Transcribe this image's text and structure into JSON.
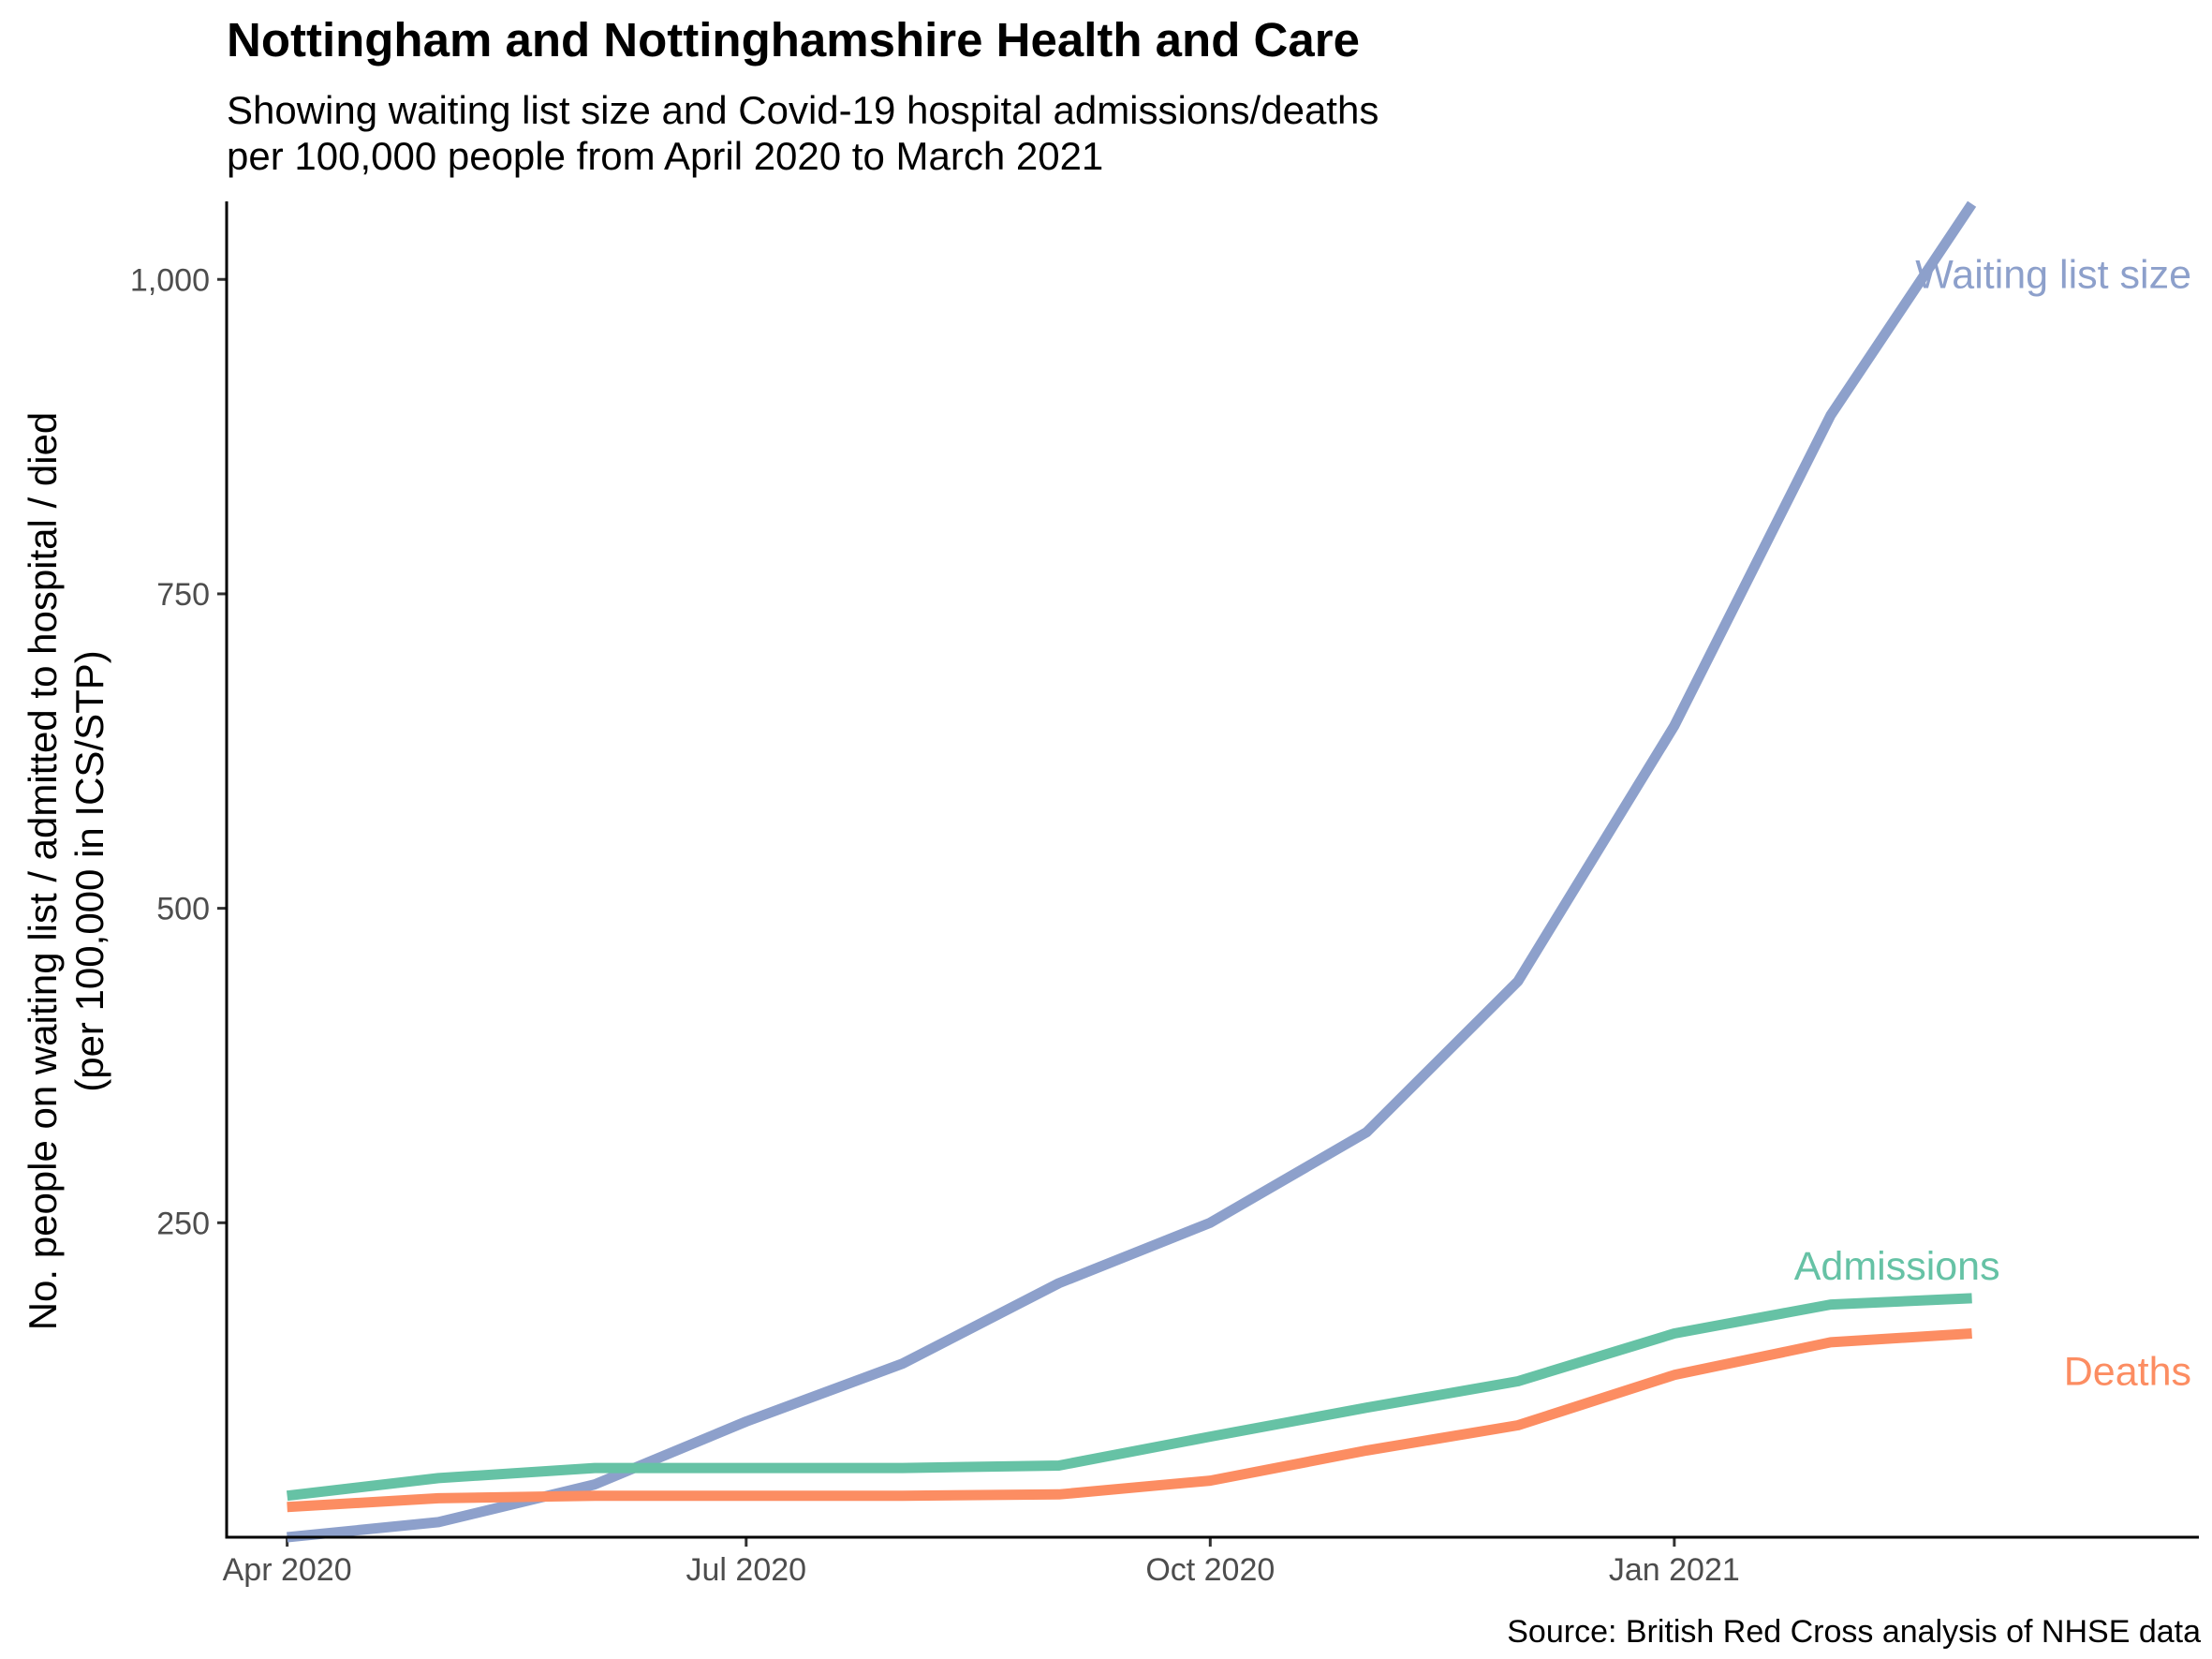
{
  "chart_data": {
    "type": "line",
    "title": "Nottingham and Nottinghamshire Health and Care",
    "subtitle_lines": [
      "Showing waiting list size and Covid-19 hospital admissions/deaths",
      "per 100,000 people from April 2020 to March 2021"
    ],
    "ylabel_lines": [
      "No. people on waiting list / admitted to hospital / died",
      "(per 100,000 in ICS/STP)"
    ],
    "caption": "Source: British Red Cross analysis of NHSE data",
    "x": [
      "2020-04",
      "2020-05",
      "2020-06",
      "2020-07",
      "2020-08",
      "2020-09",
      "2020-10",
      "2020-11",
      "2020-12",
      "2021-01",
      "2021-02",
      "2021-03"
    ],
    "x_ticks": [
      {
        "month": "2020-04",
        "label": "Apr 2020"
      },
      {
        "month": "2020-07",
        "label": "Jul 2020"
      },
      {
        "month": "2020-10",
        "label": "Oct 2020"
      },
      {
        "month": "2021-01",
        "label": "Jan 2021"
      }
    ],
    "y_ticks": [
      {
        "value": 250,
        "label": "250"
      },
      {
        "value": 500,
        "label": "500"
      },
      {
        "value": 750,
        "label": "750"
      },
      {
        "value": 1000,
        "label": "1,000"
      }
    ],
    "xlim": [
      "2020-03-20",
      "2021-04-15"
    ],
    "ylim": [
      0,
      1062
    ],
    "grid": false,
    "legend": "direct labels at line ends",
    "series": [
      {
        "name": "Waiting list size",
        "color": "#8DA0CB",
        "label_anchor": "top-right",
        "values": [
          0,
          12,
          42,
          92,
          138,
          202,
          250,
          322,
          442,
          645,
          892,
          1060
        ]
      },
      {
        "name": "Admissions",
        "color": "#66C2A5",
        "label_anchor": "above-end",
        "values": [
          33,
          47,
          55,
          55,
          55,
          57,
          80,
          103,
          124,
          162,
          185,
          190
        ]
      },
      {
        "name": "Deaths",
        "color": "#FC8D62",
        "label_anchor": "below-right",
        "values": [
          24,
          31,
          33,
          33,
          33,
          34,
          45,
          69,
          89,
          129,
          155,
          162
        ]
      }
    ]
  }
}
